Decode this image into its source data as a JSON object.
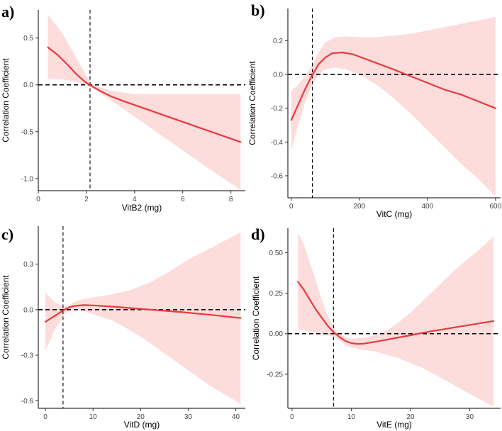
{
  "colors": {
    "line": "#e8393c",
    "band": "#fddcdc",
    "reference": "#000000",
    "axis": "#000000"
  },
  "chart_data": [
    {
      "panel_label": "a)",
      "type": "line",
      "xlabel": "VitB2 (mg)",
      "ylabel": "Correlation Coefficient",
      "xlim": [
        0,
        8.6
      ],
      "ylim": [
        -1.13,
        0.8
      ],
      "xticks": [
        0,
        2,
        4,
        6,
        8
      ],
      "yticks": [
        0.5,
        0.0,
        -0.5,
        -1.0
      ],
      "ytick_labels": [
        "0.5",
        "0.0",
        "-0.5",
        "-1.0"
      ],
      "vline_x": 2.15,
      "hline_y": 0,
      "fit": {
        "x": [
          0.4,
          0.8,
          1.2,
          1.6,
          2.0,
          2.2,
          2.6,
          3.0,
          3.5,
          4.5,
          5.5,
          6.5,
          7.5,
          8.4
        ],
        "y": [
          0.4,
          0.32,
          0.22,
          0.11,
          0.02,
          -0.01,
          -0.07,
          -0.12,
          -0.17,
          -0.26,
          -0.35,
          -0.44,
          -0.53,
          -0.61
        ]
      },
      "band_upper": {
        "x": [
          0.4,
          1.0,
          1.6,
          2.0,
          2.2,
          2.6,
          3.0,
          3.5,
          4.0,
          5.0,
          6.0,
          7.0,
          8.4
        ],
        "y": [
          0.75,
          0.55,
          0.28,
          0.1,
          0.02,
          -0.03,
          -0.06,
          -0.08,
          -0.1,
          -0.1,
          -0.1,
          -0.1,
          -0.1
        ]
      },
      "band_lower": {
        "x": [
          0.4,
          1.0,
          1.6,
          2.0,
          2.2,
          2.6,
          3.0,
          3.5,
          4.0,
          5.0,
          6.0,
          7.0,
          8.4
        ],
        "y": [
          0.06,
          0.06,
          0.03,
          -0.01,
          -0.03,
          -0.09,
          -0.16,
          -0.25,
          -0.34,
          -0.52,
          -0.7,
          -0.88,
          -1.12
        ]
      }
    },
    {
      "panel_label": "b)",
      "type": "line",
      "xlabel": "VitC (mg)",
      "ylabel": "Correlation Coefficient",
      "xlim": [
        -10,
        615
      ],
      "ylim": [
        -0.73,
        0.39
      ],
      "xticks": [
        0,
        200,
        400,
        600
      ],
      "yticks": [
        0.2,
        0.0,
        -0.2,
        -0.4,
        -0.6
      ],
      "ytick_labels": [
        "0.2",
        "0.0",
        "-0.2",
        "-0.4",
        "-0.6"
      ],
      "vline_x": 62,
      "hline_y": 0,
      "fit": {
        "x": [
          0,
          20,
          40,
          60,
          80,
          100,
          120,
          150,
          180,
          220,
          260,
          300,
          350,
          400,
          450,
          500,
          550,
          600
        ],
        "y": [
          -0.27,
          -0.18,
          -0.09,
          -0.01,
          0.06,
          0.1,
          0.125,
          0.13,
          0.12,
          0.09,
          0.06,
          0.03,
          -0.01,
          -0.05,
          -0.09,
          -0.12,
          -0.16,
          -0.2
        ]
      },
      "band_upper": {
        "x": [
          0,
          20,
          40,
          60,
          80,
          100,
          130,
          160,
          200,
          250,
          300,
          350,
          400,
          450,
          500,
          550,
          600
        ],
        "y": [
          -0.1,
          -0.06,
          -0.01,
          0.05,
          0.13,
          0.19,
          0.22,
          0.225,
          0.22,
          0.22,
          0.23,
          0.24,
          0.26,
          0.28,
          0.3,
          0.32,
          0.34
        ]
      },
      "band_lower": {
        "x": [
          0,
          20,
          40,
          60,
          80,
          100,
          130,
          160,
          200,
          250,
          300,
          350,
          400,
          450,
          500,
          550,
          600
        ],
        "y": [
          -0.45,
          -0.3,
          -0.17,
          -0.07,
          0.0,
          0.03,
          0.04,
          0.03,
          0.0,
          -0.06,
          -0.14,
          -0.23,
          -0.33,
          -0.43,
          -0.53,
          -0.62,
          -0.72
        ]
      }
    },
    {
      "panel_label": "c)",
      "type": "line",
      "xlabel": "VitD (mg)",
      "ylabel": "Correlation Coefficient",
      "xlim": [
        -1.5,
        42
      ],
      "ylim": [
        -0.65,
        0.55
      ],
      "xticks": [
        0,
        10,
        20,
        30,
        40
      ],
      "yticks": [
        0.3,
        0.0,
        -0.3,
        -0.6
      ],
      "ytick_labels": [
        "0.3",
        "0.0",
        "-0.3",
        "-0.6"
      ],
      "vline_x": 3.7,
      "hline_y": 0,
      "fit": {
        "x": [
          0,
          1,
          2,
          3,
          4,
          5,
          6,
          8,
          10,
          14,
          18,
          22,
          26,
          30,
          35,
          41
        ],
        "y": [
          -0.08,
          -0.06,
          -0.04,
          -0.02,
          0.0,
          0.015,
          0.024,
          0.03,
          0.028,
          0.02,
          0.01,
          0.0,
          -0.01,
          -0.02,
          -0.035,
          -0.055
        ]
      },
      "band_upper": {
        "x": [
          0,
          1,
          2,
          3,
          4,
          5,
          6,
          8,
          10,
          14,
          18,
          22,
          26,
          30,
          35,
          41
        ],
        "y": [
          0.11,
          0.08,
          0.05,
          0.03,
          0.02,
          0.03,
          0.05,
          0.07,
          0.08,
          0.1,
          0.13,
          0.18,
          0.25,
          0.33,
          0.41,
          0.51
        ]
      },
      "band_lower": {
        "x": [
          0,
          1,
          2,
          3,
          4,
          5,
          6,
          8,
          10,
          14,
          18,
          22,
          26,
          30,
          35,
          41
        ],
        "y": [
          -0.27,
          -0.2,
          -0.13,
          -0.08,
          -0.03,
          -0.01,
          0.0,
          -0.01,
          -0.03,
          -0.07,
          -0.14,
          -0.22,
          -0.31,
          -0.4,
          -0.51,
          -0.62
        ]
      }
    },
    {
      "panel_label": "d)",
      "type": "line",
      "xlabel": "VitE (mg)",
      "ylabel": "Correlation Coefficient",
      "xlim": [
        -0.7,
        35.2
      ],
      "ylim": [
        -0.46,
        0.65
      ],
      "xticks": [
        0,
        10,
        20,
        30
      ],
      "yticks": [
        0.5,
        0.25,
        0.0,
        -0.25
      ],
      "ytick_labels": [
        "0.50",
        "0.25",
        "0.00",
        "-0.25"
      ],
      "vline_x": 7,
      "hline_y": 0,
      "fit": {
        "x": [
          1,
          2,
          3,
          4,
          5,
          6,
          7,
          8,
          9,
          10,
          11,
          12,
          14,
          16,
          18,
          20,
          22,
          24,
          26,
          28,
          30,
          32,
          34
        ],
        "y": [
          0.32,
          0.27,
          0.21,
          0.15,
          0.1,
          0.05,
          0.01,
          -0.02,
          -0.045,
          -0.058,
          -0.063,
          -0.062,
          -0.05,
          -0.037,
          -0.023,
          -0.01,
          0.005,
          0.018,
          0.03,
          0.042,
          0.054,
          0.066,
          0.078
        ]
      },
      "band_upper": {
        "x": [
          1,
          2,
          3,
          4,
          5,
          6,
          7,
          8,
          9,
          10,
          12,
          14,
          16,
          18,
          20,
          22,
          24,
          26,
          28,
          30,
          32,
          34
        ],
        "y": [
          0.62,
          0.55,
          0.44,
          0.33,
          0.21,
          0.11,
          0.04,
          0.0,
          -0.02,
          -0.03,
          -0.025,
          -0.01,
          0.02,
          0.07,
          0.13,
          0.2,
          0.27,
          0.34,
          0.41,
          0.47,
          0.53,
          0.6
        ]
      },
      "band_lower": {
        "x": [
          1,
          2,
          3,
          4,
          5,
          6,
          7,
          8,
          9,
          10,
          12,
          14,
          16,
          18,
          20,
          22,
          24,
          26,
          28,
          30,
          32,
          34
        ],
        "y": [
          0.03,
          0.02,
          0.01,
          0.005,
          0.0,
          -0.01,
          -0.02,
          -0.04,
          -0.07,
          -0.085,
          -0.1,
          -0.11,
          -0.13,
          -0.15,
          -0.18,
          -0.21,
          -0.25,
          -0.29,
          -0.33,
          -0.37,
          -0.41,
          -0.45
        ]
      }
    }
  ]
}
